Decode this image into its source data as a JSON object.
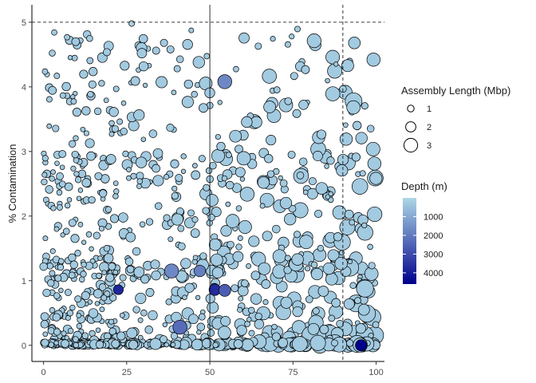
{
  "chart_data": {
    "type": "scatter",
    "title": "",
    "xlabel": "",
    "ylabel": "% Contamination",
    "xlim": [
      -3.5,
      102.5
    ],
    "ylim": [
      -0.25,
      5.27
    ],
    "x_ticks": [
      0,
      25,
      50,
      75,
      100
    ],
    "y_ticks": [
      0,
      1,
      2,
      3,
      4,
      5
    ],
    "reference_lines": {
      "vertical_solid": 50,
      "vertical_dashed": 90,
      "horizontal_dashed": 5
    },
    "grid": false,
    "legend_position": "right",
    "size_legend": {
      "title": "Assembly Length (Mbp)",
      "values": [
        1,
        2,
        3
      ]
    },
    "color_legend": {
      "title": "Depth (m)",
      "breaks": [
        1000,
        2000,
        3000,
        4000
      ],
      "range": [
        0,
        4600
      ],
      "low_color": "#add8e6",
      "high_color": "#00008b"
    },
    "highlighted_points": [
      {
        "x": 22.5,
        "y": 0.86,
        "size": 1.6,
        "depth": 3800
      },
      {
        "x": 51.5,
        "y": 0.86,
        "size": 2.0,
        "depth": 3700
      },
      {
        "x": 54.5,
        "y": 0.85,
        "size": 2.1,
        "depth": 2600
      },
      {
        "x": 41.0,
        "y": 0.28,
        "size": 2.6,
        "depth": 2300
      },
      {
        "x": 38.5,
        "y": 1.15,
        "size": 2.6,
        "depth": 1700
      },
      {
        "x": 47.0,
        "y": 1.15,
        "size": 2.0,
        "depth": 1900
      },
      {
        "x": 95.5,
        "y": 0.0,
        "size": 2.0,
        "depth": 4600
      },
      {
        "x": 54.5,
        "y": 4.08,
        "size": 2.6,
        "depth": 1700
      },
      {
        "x": 4.0,
        "y": 4.17,
        "size": 0.6,
        "depth": 300
      },
      {
        "x": 26.5,
        "y": 4.98,
        "size": 0.6,
        "depth": 100
      }
    ],
    "point_cloud": {
      "count": 1150,
      "size_range": [
        0.3,
        3.2
      ],
      "typical_depth": 300,
      "fill": "#add8e6",
      "stroke": "#000000"
    }
  }
}
